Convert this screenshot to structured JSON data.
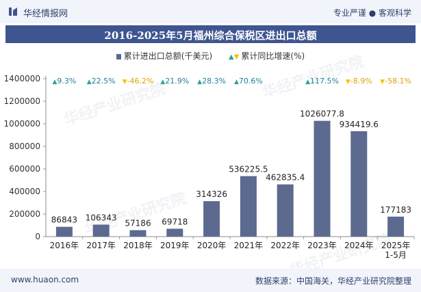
{
  "header": {
    "brand": "华经情报网",
    "tagline": "专业严谨 ● 客观科学"
  },
  "footer": {
    "website": "www.huaon.com",
    "source": "数据来源：中国海关，华经产业研究院整理"
  },
  "watermark": "华经产业研究院",
  "colors": {
    "bar": "#5d6a8f",
    "up": "#2ba39a",
    "down": "#f4c20d",
    "title_bg": "#3f5590"
  },
  "chart_data": {
    "type": "bar",
    "title": "2016-2025年5月福州综合保税区进出口总额",
    "legend": {
      "bar_label": "累计进出口总额(千美元)",
      "growth_label": "累计同比增速(%)"
    },
    "categories": [
      "2016年",
      "2017年",
      "2018年",
      "2019年",
      "2020年",
      "2021年",
      "2022年",
      "2023年",
      "2024年",
      "2025年\n1-5月"
    ],
    "category_lines": [
      [
        "2016年"
      ],
      [
        "2017年"
      ],
      [
        "2018年"
      ],
      [
        "2019年"
      ],
      [
        "2020年"
      ],
      [
        "2021年"
      ],
      [
        "2022年"
      ],
      [
        "2023年"
      ],
      [
        "2024年"
      ],
      [
        "2025年",
        "1-5月"
      ]
    ],
    "values": [
      86843,
      106343,
      57186,
      69718,
      314326,
      536225.5,
      462835.4,
      1026077.8,
      934419.6,
      177183
    ],
    "value_labels": [
      "86843",
      "106343",
      "57186",
      "69718",
      "314326",
      "536225.5",
      "462835.4",
      "1026077.8",
      "934419.6",
      "177183"
    ],
    "growth": [
      "9.3%",
      "22.5%",
      "-46.2%",
      "21.9%",
      "28.3%",
      "70.6%",
      "",
      "117.5%",
      "-8.9%",
      "-58.1%"
    ],
    "growth_direction": [
      "up",
      "up",
      "down",
      "up",
      "up",
      "up",
      "",
      "up",
      "down",
      "down"
    ],
    "ylim": [
      0,
      1400000
    ],
    "yticks": [
      0,
      200000,
      400000,
      600000,
      800000,
      1000000,
      1200000,
      1400000
    ],
    "ytick_labels": [
      "0",
      "200000",
      "400000",
      "600000",
      "800000",
      "1000000",
      "1200000",
      "1400000"
    ]
  }
}
